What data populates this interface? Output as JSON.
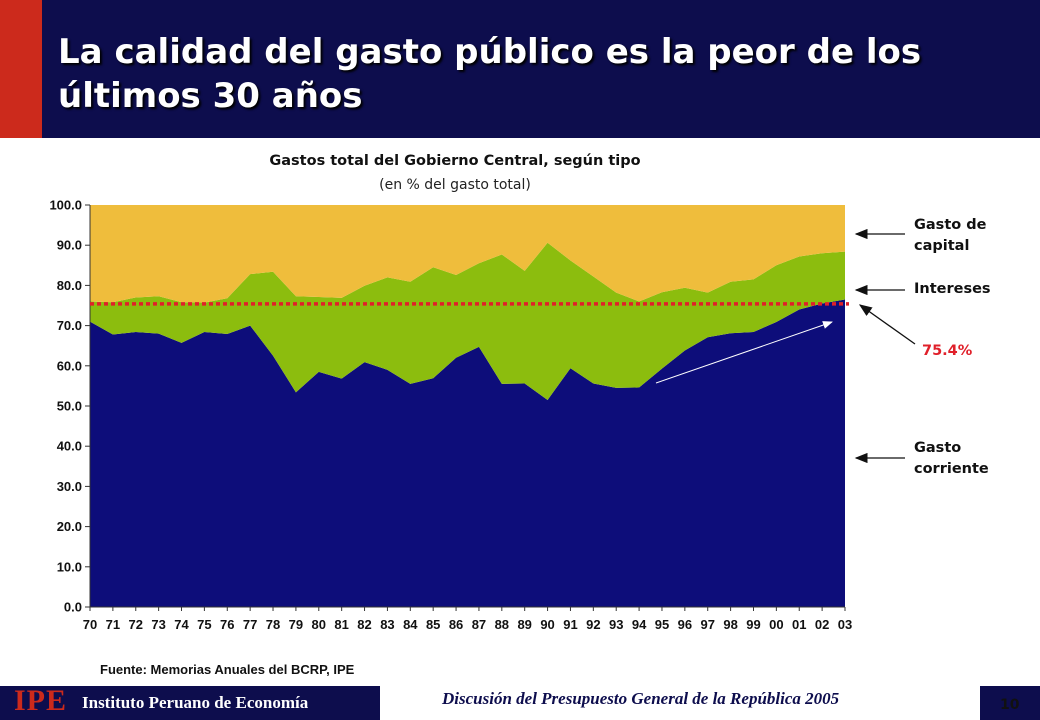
{
  "slide": {
    "title_line1": "La calidad del gasto público es la peor de los",
    "title_line2": "últimos 30 años",
    "source": "Fuente: Memorias Anuales del BCRP, IPE",
    "footer_logo": "IPE",
    "footer_org": "Instituto Peruano de Economía",
    "footer_text": "Discusión del Presupuesto General de la República 2005",
    "page_number": "10"
  },
  "colors": {
    "header_bg": "#0d0d4d",
    "header_accent": "#cc2a1c",
    "gasto_corriente": "#0d0d7a",
    "intereses": "#8cbd0e",
    "gasto_capital": "#efbd3c",
    "reference_line": "#e0202a"
  },
  "chart_data": {
    "type": "area",
    "stacked": true,
    "title": "Gastos total del Gobierno Central, según tipo",
    "subtitle": "(en % del gasto total)",
    "xlabel": "",
    "ylabel": "",
    "ylim": [
      0,
      100
    ],
    "yticks": [
      "0.0",
      "10.0",
      "20.0",
      "30.0",
      "40.0",
      "50.0",
      "60.0",
      "70.0",
      "80.0",
      "90.0",
      "100.0"
    ],
    "categories": [
      "70",
      "71",
      "72",
      "73",
      "74",
      "75",
      "76",
      "77",
      "78",
      "79",
      "80",
      "81",
      "82",
      "83",
      "84",
      "85",
      "86",
      "87",
      "88",
      "89",
      "90",
      "91",
      "92",
      "93",
      "94",
      "95",
      "96",
      "97",
      "98",
      "99",
      "00",
      "01",
      "02",
      "03"
    ],
    "series": [
      {
        "name": "Gasto corriente",
        "values": [
          71.0,
          67.8,
          68.4,
          68.0,
          65.7,
          68.4,
          67.9,
          70.0,
          62.5,
          53.4,
          58.5,
          56.8,
          60.9,
          59.0,
          55.5,
          56.9,
          62.0,
          64.7,
          55.5,
          55.6,
          51.5,
          59.4,
          55.6,
          54.5,
          54.6,
          59.3,
          63.8,
          67.1,
          68.1,
          68.4,
          70.9,
          74.0,
          75.5,
          76.5
        ]
      },
      {
        "name": "Intereses",
        "values": [
          5.0,
          8.0,
          8.6,
          9.3,
          10.1,
          7.3,
          8.9,
          12.8,
          20.9,
          23.9,
          18.6,
          20.1,
          19.0,
          23.0,
          25.4,
          27.6,
          20.6,
          20.8,
          32.2,
          28.0,
          39.1,
          26.8,
          26.6,
          23.7,
          21.4,
          19.0,
          15.6,
          11.1,
          12.8,
          13.1,
          14.1,
          13.2,
          12.5,
          11.9
        ]
      },
      {
        "name": "Gasto de capital",
        "values": [
          24.0,
          24.2,
          23.0,
          22.7,
          24.2,
          24.3,
          23.2,
          17.2,
          16.6,
          22.7,
          22.9,
          23.1,
          20.1,
          18.0,
          19.1,
          15.5,
          17.4,
          14.5,
          12.3,
          16.4,
          9.4,
          13.8,
          17.8,
          21.8,
          24.0,
          21.7,
          20.6,
          21.8,
          19.1,
          18.5,
          15.0,
          12.8,
          12.0,
          11.6
        ]
      }
    ],
    "reference_line": {
      "value": 75.4,
      "label": "75.4%"
    },
    "annotations": {
      "capital_line1": "Gasto de",
      "capital_line2": "capital",
      "intereses": "Intereses",
      "corriente_line1": "Gasto",
      "corriente_line2": "corriente",
      "reference": "75.4%"
    },
    "grid": false,
    "legend": "none"
  }
}
